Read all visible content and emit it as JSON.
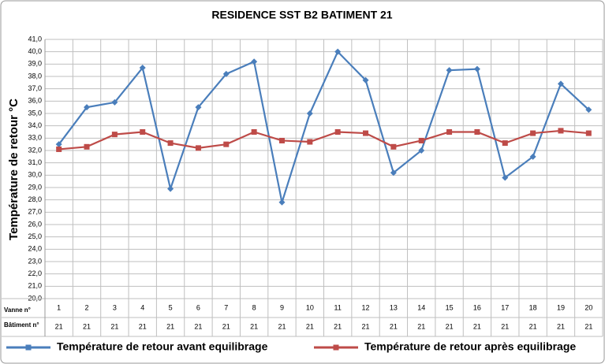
{
  "chart_data": {
    "type": "line",
    "title": "RESIDENCE SST B2 BATIMENT 21",
    "y_label": "Température de retour °C",
    "row_labels": [
      "Vanne n°",
      "Bâtiment n°"
    ],
    "categories": [
      "1",
      "2",
      "3",
      "4",
      "5",
      "6",
      "7",
      "8",
      "9",
      "10",
      "11",
      "12",
      "13",
      "14",
      "15",
      "16",
      "17",
      "18",
      "19",
      "20"
    ],
    "buildings": [
      "21",
      "21",
      "21",
      "21",
      "21",
      "21",
      "21",
      "21",
      "21",
      "21",
      "21",
      "21",
      "21",
      "21",
      "21",
      "21",
      "21",
      "21",
      "21",
      "21"
    ],
    "series": [
      {
        "name": "Température de retour avant equilibrage",
        "color": "#4a7ebb",
        "marker": "diamond",
        "values": [
          32.5,
          35.5,
          35.9,
          38.7,
          28.9,
          35.5,
          38.2,
          39.2,
          27.8,
          35.0,
          40.0,
          37.7,
          30.2,
          32.0,
          38.5,
          38.6,
          29.8,
          31.5,
          37.4,
          35.3
        ]
      },
      {
        "name": "Température de retour après equilibrage",
        "color": "#be4b48",
        "marker": "square",
        "values": [
          32.1,
          32.3,
          33.3,
          33.5,
          32.6,
          32.2,
          32.5,
          33.5,
          32.8,
          32.7,
          33.5,
          33.4,
          32.3,
          32.8,
          33.5,
          33.5,
          32.6,
          33.4,
          33.6,
          33.4
        ]
      }
    ],
    "ylim": [
      20,
      41
    ],
    "yticks": [
      {
        "value": 20,
        "label": "20,0"
      },
      {
        "value": 21,
        "label": "21,0"
      },
      {
        "value": 22,
        "label": "22,0"
      },
      {
        "value": 23,
        "label": "23,0"
      },
      {
        "value": 24,
        "label": "24,0"
      },
      {
        "value": 25,
        "label": "25,0"
      },
      {
        "value": 26,
        "label": "26,0"
      },
      {
        "value": 27,
        "label": "27,0"
      },
      {
        "value": 28,
        "label": "28,0"
      },
      {
        "value": 29,
        "label": "29,0"
      },
      {
        "value": 30,
        "label": "30,0"
      },
      {
        "value": 31,
        "label": "31,0"
      },
      {
        "value": 32,
        "label": "32,0"
      },
      {
        "value": 33,
        "label": "33,0"
      },
      {
        "value": 34,
        "label": "34,0"
      },
      {
        "value": 35,
        "label": "35,0"
      },
      {
        "value": 36,
        "label": "36,0"
      },
      {
        "value": 37,
        "label": "37,0"
      },
      {
        "value": 38,
        "label": "38,0"
      },
      {
        "value": 39,
        "label": "39,0"
      },
      {
        "value": 40,
        "label": "40,0"
      },
      {
        "value": 41,
        "label": "41,0"
      }
    ],
    "grid": true
  }
}
